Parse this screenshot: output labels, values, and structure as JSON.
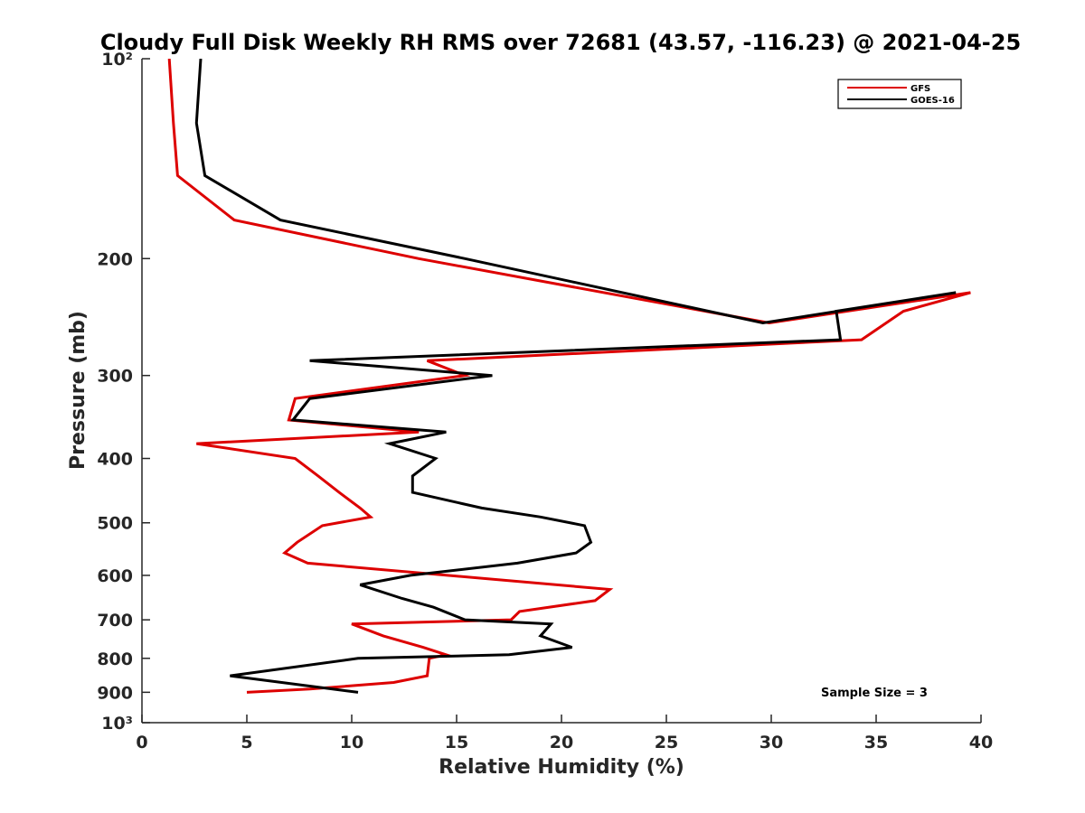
{
  "chart_data": {
    "type": "line",
    "title": "Cloudy Full Disk Weekly RH RMS over 72681 (43.57, -116.23) @ 2021-04-25",
    "xlabel": "Relative Humidity (%)",
    "ylabel": "Pressure (mb)",
    "xlim": [
      0,
      40
    ],
    "ylim": [
      100,
      1000
    ],
    "y_scale": "log",
    "y_reversed": true,
    "x_ticks": [
      0,
      5,
      10,
      15,
      20,
      25,
      30,
      35,
      40
    ],
    "x_tick_labels": [
      "0",
      "5",
      "10",
      "15",
      "20",
      "25",
      "30",
      "35",
      "40"
    ],
    "y_ticks": [
      100,
      200,
      300,
      400,
      500,
      600,
      700,
      800,
      900,
      1000
    ],
    "y_tick_labels": [
      "10²",
      "200",
      "300",
      "400",
      "500",
      "600",
      "700",
      "800",
      "900",
      "10³"
    ],
    "grid": false,
    "legend_position": "top-right",
    "annotation": "Sample Size = 3",
    "series": [
      {
        "name": "GFS",
        "color": "#dd0000",
        "points": [
          [
            1.3,
            100
          ],
          [
            1.5,
            125
          ],
          [
            1.7,
            150
          ],
          [
            4.4,
            175
          ],
          [
            13.2,
            200
          ],
          [
            29.9,
            250
          ],
          [
            39.5,
            225
          ],
          [
            36.3,
            240
          ],
          [
            34.3,
            265
          ],
          [
            13.6,
            285
          ],
          [
            15.4,
            300
          ],
          [
            7.3,
            325
          ],
          [
            7.0,
            350
          ],
          [
            13.2,
            365
          ],
          [
            2.6,
            380
          ],
          [
            7.3,
            400
          ],
          [
            8.4,
            425
          ],
          [
            9.4,
            450
          ],
          [
            10.4,
            475
          ],
          [
            10.9,
            490
          ],
          [
            8.6,
            505
          ],
          [
            7.4,
            535
          ],
          [
            6.8,
            555
          ],
          [
            7.9,
            575
          ],
          [
            22.3,
            630
          ],
          [
            21.6,
            655
          ],
          [
            18.0,
            680
          ],
          [
            17.6,
            700
          ],
          [
            10.0,
            710
          ],
          [
            11.5,
            740
          ],
          [
            13.4,
            770
          ],
          [
            14.5,
            790
          ],
          [
            13.7,
            800
          ],
          [
            13.6,
            850
          ],
          [
            12.0,
            870
          ],
          [
            8.0,
            890
          ],
          [
            5.0,
            900
          ]
        ]
      },
      {
        "name": "GOES-16",
        "color": "#000000",
        "points": [
          [
            2.8,
            100
          ],
          [
            2.6,
            125
          ],
          [
            3.0,
            150
          ],
          [
            6.6,
            175
          ],
          [
            15.4,
            200
          ],
          [
            29.6,
            250
          ],
          [
            38.8,
            225
          ],
          [
            33.1,
            240
          ],
          [
            33.3,
            265
          ],
          [
            8.0,
            285
          ],
          [
            16.7,
            300
          ],
          [
            8.0,
            325
          ],
          [
            7.2,
            350
          ],
          [
            14.5,
            365
          ],
          [
            11.8,
            380
          ],
          [
            14.0,
            400
          ],
          [
            12.9,
            425
          ],
          [
            12.9,
            450
          ],
          [
            16.2,
            475
          ],
          [
            19.0,
            490
          ],
          [
            21.1,
            505
          ],
          [
            21.4,
            535
          ],
          [
            20.7,
            555
          ],
          [
            17.9,
            575
          ],
          [
            12.8,
            600
          ],
          [
            10.4,
            620
          ],
          [
            12.4,
            650
          ],
          [
            13.9,
            670
          ],
          [
            15.4,
            700
          ],
          [
            19.5,
            710
          ],
          [
            19.0,
            740
          ],
          [
            20.5,
            770
          ],
          [
            17.5,
            790
          ],
          [
            10.3,
            800
          ],
          [
            4.2,
            850
          ],
          [
            10.3,
            900
          ]
        ]
      }
    ]
  }
}
